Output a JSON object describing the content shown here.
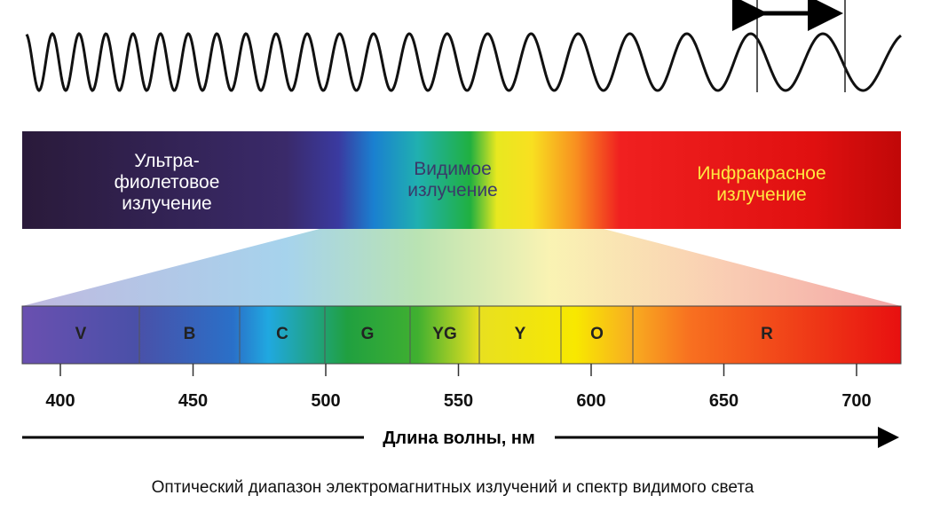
{
  "regions": [
    {
      "lines": [
        "Ультра-",
        "фиолетовое",
        "излучение"
      ]
    },
    {
      "lines": [
        "Видимое",
        "излучение"
      ]
    },
    {
      "lines": [
        "Инфракрасное",
        "излучение"
      ]
    }
  ],
  "bands": [
    "V",
    "B",
    "C",
    "G",
    "YG",
    "Y",
    "O",
    "R"
  ],
  "ticks": [
    400,
    450,
    500,
    550,
    600,
    650,
    700
  ],
  "axis_label": "Длина волны, нм",
  "caption": "Оптический диапазон электромагнитных излучений и спектр видимого света"
}
